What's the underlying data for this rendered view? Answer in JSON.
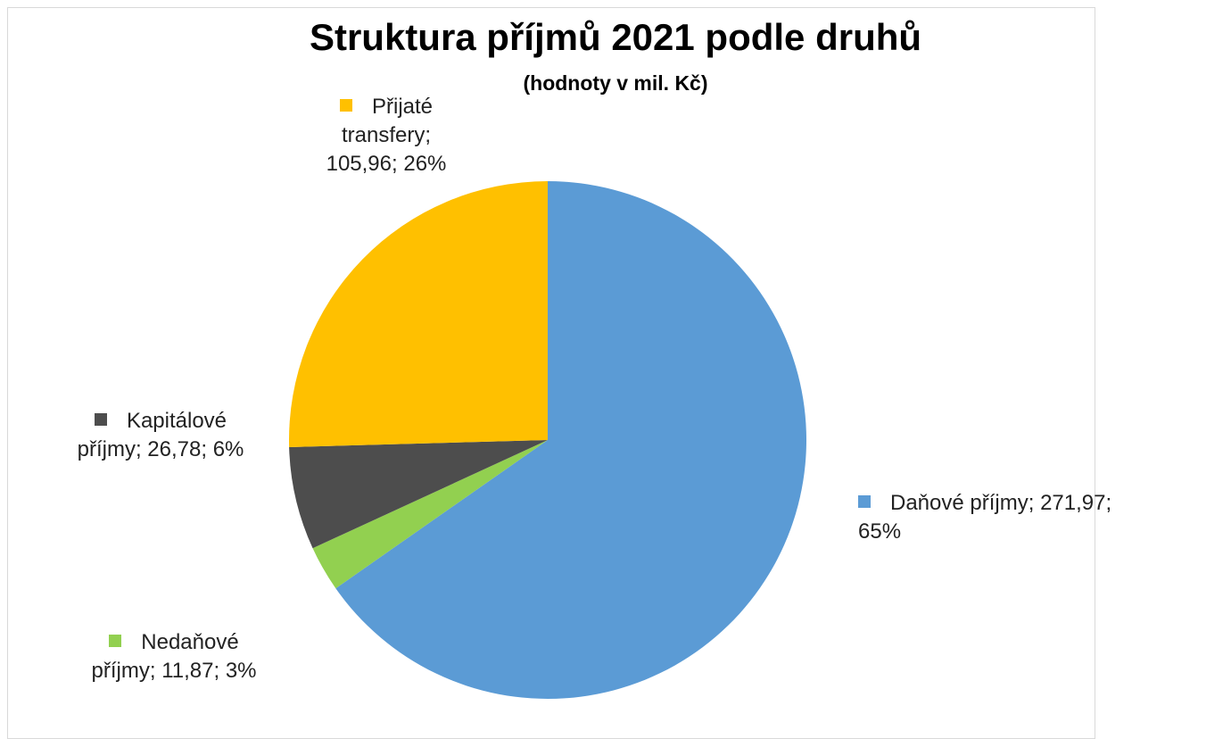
{
  "chart_data": {
    "type": "pie",
    "title": "Struktura příjmů 2021 podle druhů",
    "subtitle": "(hodnoty v mil. Kč)",
    "categories": [
      "Daňové příjmy",
      "Nedaňové příjmy",
      "Kapitálové příjmy",
      "Přijaté transfery"
    ],
    "values": [
      271.97,
      11.87,
      26.78,
      105.96
    ],
    "value_labels": [
      "271,97",
      "11,87",
      "26,78",
      "105,96"
    ],
    "percentages": [
      65,
      3,
      6,
      26
    ],
    "percentage_labels": [
      "65%",
      "3%",
      "6%",
      "26%"
    ],
    "label_separator": "; ",
    "colors": [
      "#5b9bd5",
      "#92d050",
      "#4d4d4d",
      "#ffc000"
    ]
  }
}
